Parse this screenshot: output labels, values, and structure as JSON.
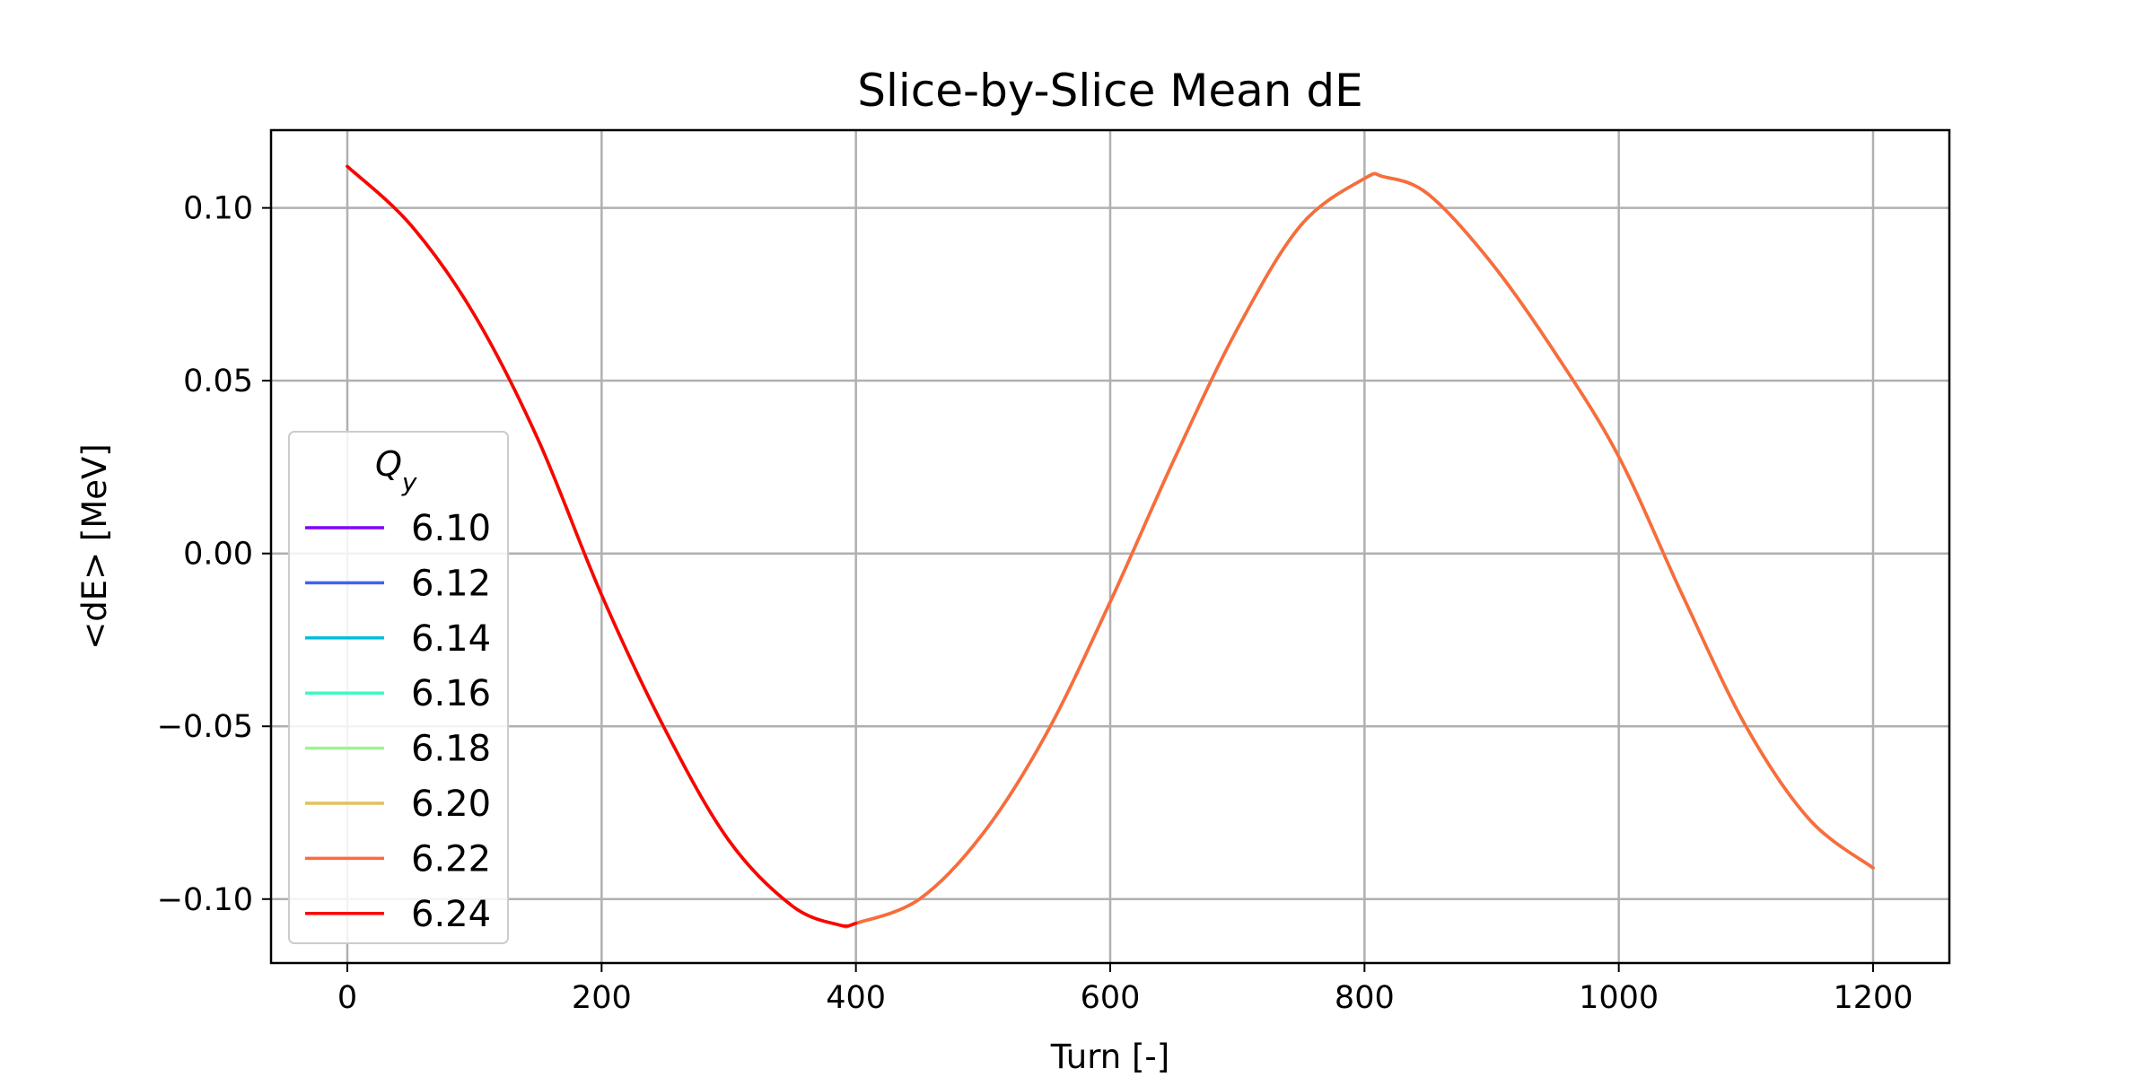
{
  "chart_data": {
    "type": "line",
    "title": "Slice-by-Slice Mean dE",
    "xlabel": "Turn [-]",
    "ylabel": "<dE> [MeV]",
    "xlim": [
      -60,
      1260
    ],
    "ylim": [
      -0.1185,
      0.1225
    ],
    "xticks": [
      0,
      200,
      400,
      600,
      800,
      1000,
      1200
    ],
    "xtick_labels": [
      "0",
      "200",
      "400",
      "600",
      "800",
      "1000",
      "1200"
    ],
    "yticks": [
      0.1,
      0.05,
      0.0,
      -0.05,
      -0.1
    ],
    "ytick_labels": [
      "0.10",
      "0.05",
      "0.00",
      "−0.05",
      "−0.10"
    ],
    "grid": true,
    "legend": {
      "title": "Q",
      "title_subscript": "y",
      "placement": "center-left"
    },
    "series": [
      {
        "name": "6.10",
        "color": "#7f00ff",
        "x": [
          0,
          50,
          100,
          150,
          200,
          250,
          300,
          350,
          387,
          400,
          450,
          500,
          550,
          600,
          650,
          700,
          750,
          800,
          815,
          850,
          900,
          950,
          1000,
          1050,
          1100,
          1150,
          1200
        ],
        "y": [
          0.112,
          0.095,
          0.069,
          0.033,
          -0.012,
          -0.051,
          -0.083,
          -0.102,
          -0.1075,
          -0.107,
          -0.1,
          -0.081,
          -0.052,
          -0.014,
          0.027,
          0.065,
          0.095,
          0.1085,
          0.109,
          0.104,
          0.084,
          0.058,
          0.028,
          -0.012,
          -0.05,
          -0.077,
          -0.091
        ]
      },
      {
        "name": "6.12",
        "color": "#3f62f5",
        "x": [
          0,
          50,
          100,
          150,
          200,
          250,
          300,
          350,
          387,
          400,
          450,
          500,
          550,
          600,
          650,
          700,
          750,
          800,
          815,
          850,
          900,
          950,
          1000,
          1050,
          1100,
          1150,
          1200
        ],
        "y": [
          0.112,
          0.095,
          0.069,
          0.033,
          -0.012,
          -0.051,
          -0.083,
          -0.102,
          -0.1075,
          -0.107,
          -0.1,
          -0.081,
          -0.052,
          -0.014,
          0.027,
          0.065,
          0.095,
          0.1085,
          0.109,
          0.104,
          0.084,
          0.058,
          0.028,
          -0.012,
          -0.05,
          -0.077,
          -0.091
        ]
      },
      {
        "name": "6.14",
        "color": "#00bde0",
        "x": [
          0,
          50,
          100,
          150,
          200,
          250,
          300,
          350,
          387,
          400,
          450,
          500,
          550,
          600,
          650,
          700,
          750,
          800,
          815,
          850,
          900,
          950,
          1000,
          1050,
          1100,
          1150,
          1200
        ],
        "y": [
          0.112,
          0.095,
          0.069,
          0.033,
          -0.012,
          -0.051,
          -0.083,
          -0.102,
          -0.1075,
          -0.107,
          -0.1,
          -0.081,
          -0.052,
          -0.014,
          0.027,
          0.065,
          0.095,
          0.1085,
          0.109,
          0.104,
          0.084,
          0.058,
          0.028,
          -0.012,
          -0.05,
          -0.077,
          -0.091
        ]
      },
      {
        "name": "6.16",
        "color": "#42f7c3",
        "x": [
          0,
          50,
          100,
          150,
          200,
          250,
          300,
          350,
          387,
          400,
          450,
          500,
          550,
          600,
          650,
          700,
          750,
          800,
          815,
          850,
          900,
          950,
          1000,
          1050,
          1100,
          1150,
          1200
        ],
        "y": [
          0.112,
          0.095,
          0.069,
          0.033,
          -0.012,
          -0.051,
          -0.083,
          -0.102,
          -0.1075,
          -0.107,
          -0.1,
          -0.081,
          -0.052,
          -0.014,
          0.027,
          0.065,
          0.095,
          0.1085,
          0.109,
          0.104,
          0.084,
          0.058,
          0.028,
          -0.012,
          -0.05,
          -0.077,
          -0.091
        ]
      },
      {
        "name": "6.18",
        "color": "#9ff392",
        "x": [
          0,
          50,
          100,
          150,
          200,
          250,
          300,
          350,
          387,
          400,
          450,
          500,
          550,
          600,
          650,
          700,
          750,
          800,
          815,
          850,
          900,
          950,
          1000,
          1050,
          1100,
          1150,
          1200
        ],
        "y": [
          0.112,
          0.095,
          0.069,
          0.033,
          -0.012,
          -0.051,
          -0.083,
          -0.102,
          -0.1075,
          -0.107,
          -0.1,
          -0.081,
          -0.052,
          -0.014,
          0.027,
          0.065,
          0.095,
          0.1085,
          0.109,
          0.104,
          0.084,
          0.058,
          0.028,
          -0.012,
          -0.05,
          -0.077,
          -0.091
        ]
      },
      {
        "name": "6.20",
        "color": "#e0c25c",
        "x": [
          0,
          50,
          100,
          150,
          200,
          250,
          300,
          350,
          387,
          400,
          450,
          500,
          550,
          600,
          650,
          700,
          750,
          800,
          815,
          850,
          900,
          950,
          1000,
          1050,
          1100,
          1150,
          1200
        ],
        "y": [
          0.112,
          0.095,
          0.069,
          0.033,
          -0.012,
          -0.051,
          -0.083,
          -0.102,
          -0.1075,
          -0.107,
          -0.1,
          -0.081,
          -0.052,
          -0.014,
          0.027,
          0.065,
          0.095,
          0.1085,
          0.109,
          0.104,
          0.084,
          0.058,
          0.028,
          -0.012,
          -0.05,
          -0.077,
          -0.091
        ]
      },
      {
        "name": "6.22",
        "color": "#ff6a3a",
        "x": [
          0,
          50,
          100,
          150,
          200,
          250,
          300,
          350,
          387,
          400,
          450,
          500,
          550,
          600,
          650,
          700,
          750,
          800,
          815,
          850,
          900,
          950,
          1000,
          1050,
          1100,
          1150,
          1200
        ],
        "y": [
          0.112,
          0.095,
          0.069,
          0.033,
          -0.012,
          -0.051,
          -0.083,
          -0.102,
          -0.1075,
          -0.107,
          -0.1,
          -0.081,
          -0.052,
          -0.014,
          0.027,
          0.065,
          0.095,
          0.1085,
          0.109,
          0.104,
          0.084,
          0.058,
          0.028,
          -0.012,
          -0.05,
          -0.077,
          -0.091
        ]
      },
      {
        "name": "6.24",
        "color": "#ff0000",
        "x": [
          0,
          50,
          100,
          150,
          200,
          250,
          300,
          350,
          387,
          400
        ],
        "y": [
          0.112,
          0.095,
          0.069,
          0.033,
          -0.012,
          -0.051,
          -0.083,
          -0.102,
          -0.1075,
          -0.107
        ]
      }
    ]
  }
}
